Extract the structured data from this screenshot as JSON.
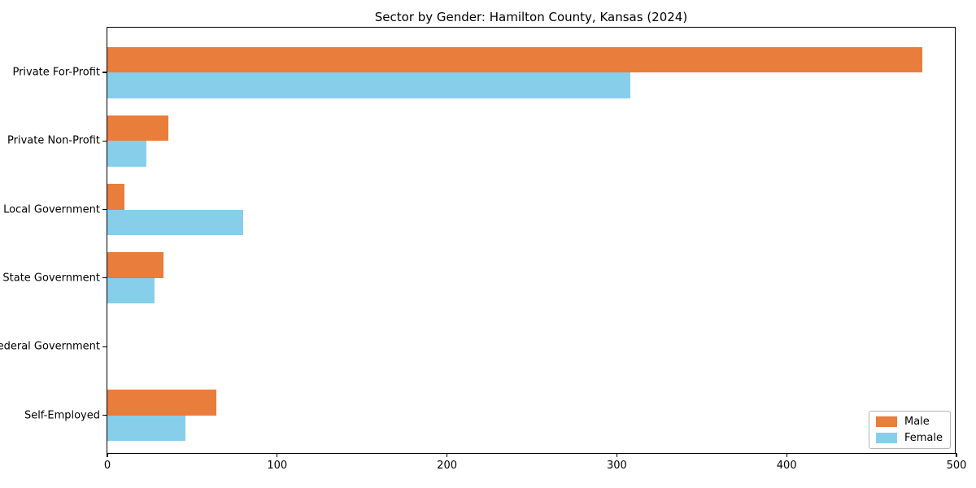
{
  "page": {
    "title": "Sector by Gender: Hamilton County, Kansas (2024)"
  },
  "chart_data": {
    "type": "bar",
    "orientation": "horizontal",
    "title": "Sector by Gender: Hamilton County, Kansas (2024)",
    "categories": [
      "Private For-Profit",
      "Private Non-Profit",
      "Local Government",
      "State Government",
      "Federal Government",
      "Self-Employed"
    ],
    "series": [
      {
        "name": "Male",
        "color": "#E87D3C",
        "values": [
          480,
          36,
          10,
          33,
          0,
          64
        ]
      },
      {
        "name": "Female",
        "color": "#87CEEB",
        "values": [
          308,
          23,
          80,
          28,
          0,
          46
        ]
      }
    ],
    "xlabel": "",
    "ylabel": "",
    "xlim": [
      0,
      500
    ],
    "xticks": [
      0,
      100,
      200,
      300,
      400,
      500
    ],
    "grid": false,
    "legend_position": "lower right",
    "axis_color": "#000000"
  }
}
